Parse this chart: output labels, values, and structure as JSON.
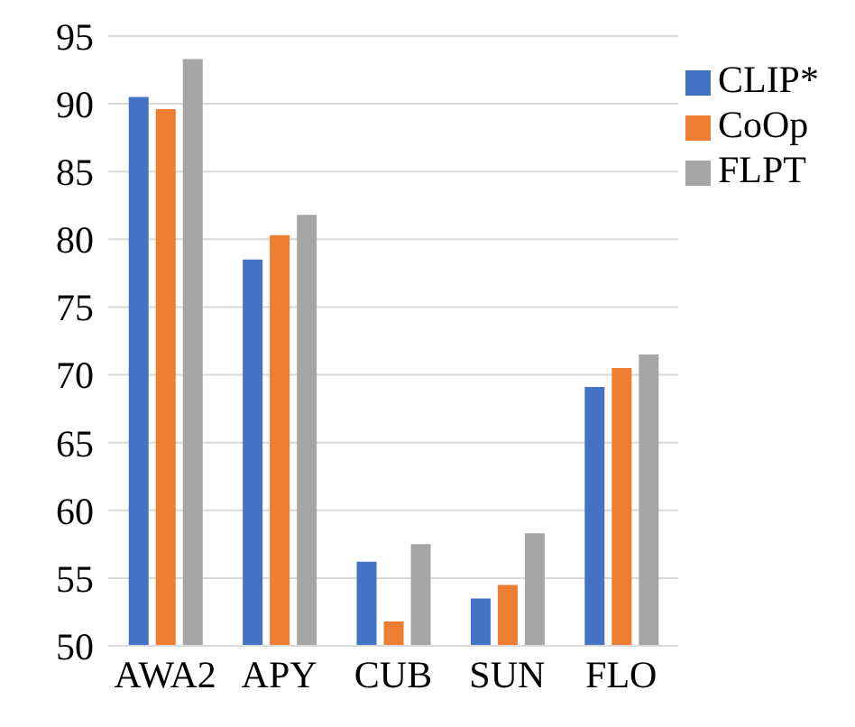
{
  "chart_data": {
    "type": "bar",
    "categories": [
      "AWA2",
      "APY",
      "CUB",
      "SUN",
      "FLO"
    ],
    "series": [
      {
        "name": "CLIP*",
        "color": "#4472c4",
        "values": [
          90.5,
          78.5,
          56.2,
          53.5,
          69.1
        ]
      },
      {
        "name": "CoOp",
        "color": "#ed7d31",
        "values": [
          89.6,
          80.3,
          51.8,
          54.5,
          70.5
        ]
      },
      {
        "name": "FLPT",
        "color": "#a5a5a5",
        "values": [
          93.3,
          81.8,
          57.5,
          58.3,
          71.5
        ]
      }
    ],
    "ylim": [
      50,
      95
    ],
    "yticks": [
      50,
      55,
      60,
      65,
      70,
      75,
      80,
      85,
      90,
      95
    ],
    "grid": "y",
    "legend": "top right"
  }
}
